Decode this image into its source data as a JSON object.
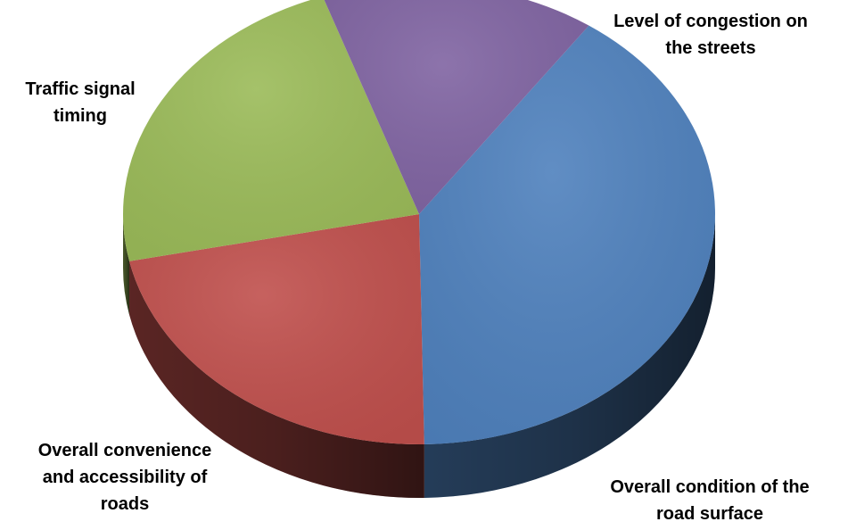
{
  "chart_data": {
    "type": "pie",
    "style": "3d",
    "legend": "none",
    "title": "",
    "slices": [
      {
        "label_lines": [
          "Level of congestion on",
          "the streets"
        ],
        "value": 40,
        "color": "#4F81BD"
      },
      {
        "label_lines": [
          "Overall condition of the",
          "road surface"
        ],
        "value": 22,
        "color": "#C0504D"
      },
      {
        "label_lines": [
          "Overall convenience",
          "and accessibility of",
          "roads"
        ],
        "value": 23,
        "color": "#9BBB59"
      },
      {
        "label_lines": [
          "Traffic signal",
          "timing"
        ],
        "value": 15,
        "color": "#8064A2"
      }
    ]
  }
}
